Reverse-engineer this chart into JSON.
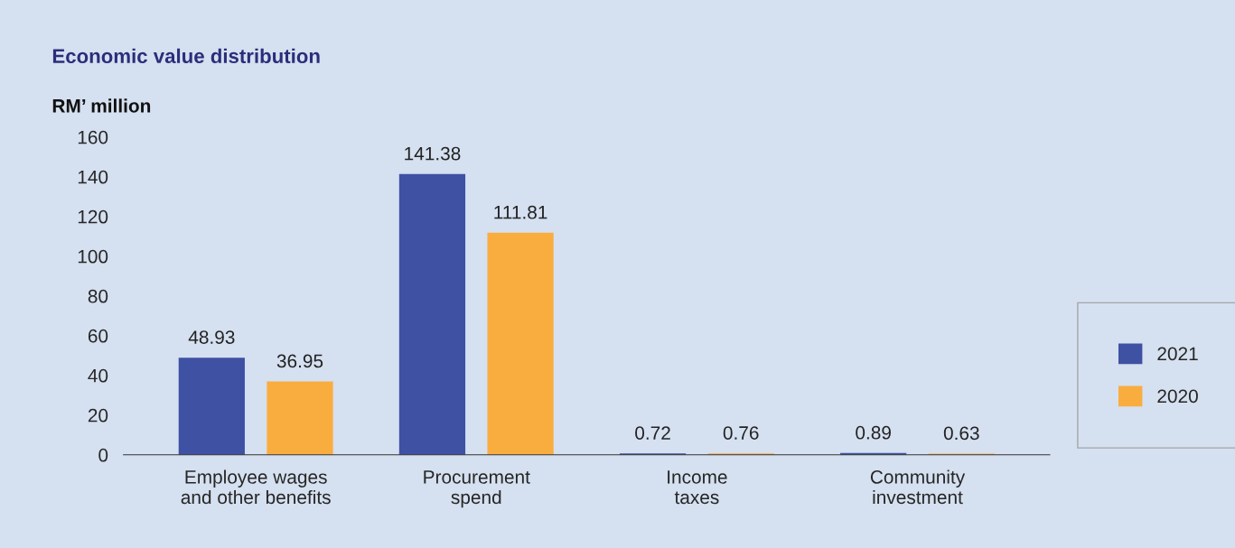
{
  "chart_data": {
    "type": "bar",
    "title": "Economic value distribution",
    "ylabel": "RM’ million",
    "categories": [
      "Employee wages\nand other benefits",
      "Procurement\nspend",
      "Income\ntaxes",
      "Community\ninvestment"
    ],
    "series": [
      {
        "name": "2021",
        "color": "#3f51a3",
        "values": [
          48.93,
          141.38,
          0.72,
          0.89
        ]
      },
      {
        "name": "2020",
        "color": "#f9ad3f",
        "values": [
          36.95,
          111.81,
          0.76,
          0.63
        ]
      }
    ],
    "ylim": [
      0,
      160
    ],
    "yticks": [
      0,
      20,
      40,
      60,
      80,
      100,
      120,
      140,
      160
    ],
    "data_labels": true,
    "legend": "right",
    "grid": false
  }
}
